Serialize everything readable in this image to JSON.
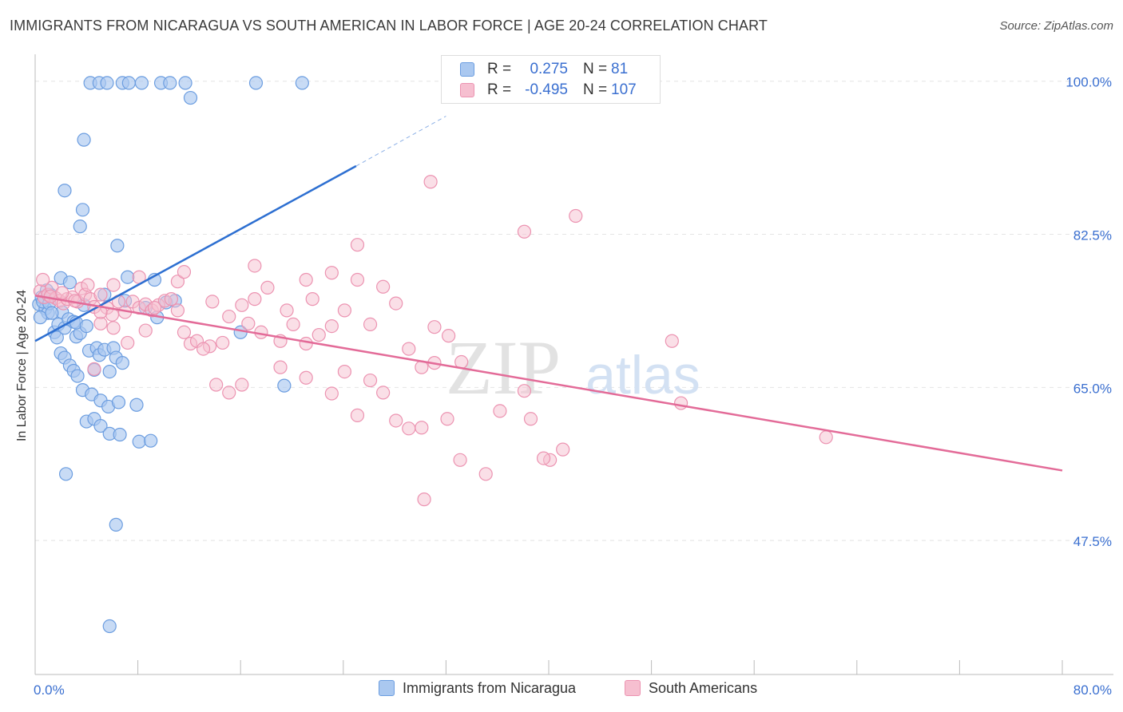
{
  "header": {
    "title": "IMMIGRANTS FROM NICARAGUA VS SOUTH AMERICAN IN LABOR FORCE | AGE 20-24 CORRELATION CHART",
    "source": "Source: ZipAtlas.com"
  },
  "watermark": {
    "zip": "ZIP",
    "atlas": "atlas"
  },
  "legend": {
    "rows": [
      {
        "r_label": "R =",
        "r_value": "0.275",
        "n_label": "N =",
        "n_value": "81"
      },
      {
        "r_label": "R =",
        "r_value": "-0.495",
        "n_label": "N =",
        "n_value": "107"
      }
    ]
  },
  "bottom_legend": {
    "series1": "Immigrants from Nicaragua",
    "series2": "South Americans"
  },
  "colors": {
    "blue_fill": "#aac8f0",
    "blue_stroke": "#6b9de0",
    "blue_line": "#2d6fd1",
    "pink_fill": "#f6bfd0",
    "pink_stroke": "#ec93b1",
    "pink_line": "#e36b98",
    "tick_label": "#3a6fd0",
    "grid": "#e4e4e4"
  },
  "chart_data": {
    "type": "scatter",
    "title": "IMMIGRANTS FROM NICARAGUA VS SOUTH AMERICAN IN LABOR FORCE | AGE 20-24 CORRELATION CHART",
    "xlabel": "",
    "ylabel": "In Labor Force | Age 20-24",
    "xlim": [
      0,
      80
    ],
    "ylim": [
      32,
      104
    ],
    "x_tick_labels": [
      "0.0%",
      "80.0%"
    ],
    "y_ticks": [
      47.5,
      65.0,
      82.5,
      100.0
    ],
    "y_tick_labels": [
      "47.5%",
      "65.0%",
      "82.5%",
      "100.0%"
    ],
    "grid": true,
    "legend_position": "top-center",
    "series": [
      {
        "name": "Immigrants from Nicaragua",
        "r": 0.275,
        "n": 81,
        "trend": {
          "x": [
            0,
            25,
            32
          ],
          "y": [
            70.3,
            90.3,
            96.0
          ],
          "solid_until_x": 25
        },
        "points": [
          [
            0.3,
            74.5
          ],
          [
            0.5,
            75.3
          ],
          [
            0.8,
            74.0
          ],
          [
            1.0,
            73.5
          ],
          [
            0.4,
            73.0
          ],
          [
            1.2,
            75.6
          ],
          [
            0.9,
            76.1
          ],
          [
            0.6,
            74.8
          ],
          [
            1.5,
            71.3
          ],
          [
            1.7,
            70.7
          ],
          [
            1.1,
            74.6
          ],
          [
            1.8,
            72.2
          ],
          [
            2.1,
            73.6
          ],
          [
            2.3,
            71.8
          ],
          [
            2.6,
            72.8
          ],
          [
            3.0,
            72.5
          ],
          [
            2.0,
            77.5
          ],
          [
            2.7,
            77.0
          ],
          [
            3.2,
            70.8
          ],
          [
            3.5,
            71.2
          ],
          [
            3.8,
            74.4
          ],
          [
            3.2,
            72.4
          ],
          [
            2.0,
            68.9
          ],
          [
            2.3,
            68.4
          ],
          [
            2.7,
            67.5
          ],
          [
            3.0,
            66.9
          ],
          [
            3.3,
            66.3
          ],
          [
            4.2,
            69.2
          ],
          [
            4.8,
            69.5
          ],
          [
            5.0,
            68.7
          ],
          [
            5.4,
            69.3
          ],
          [
            4.6,
            67.0
          ],
          [
            6.1,
            69.5
          ],
          [
            6.3,
            68.4
          ],
          [
            6.8,
            67.8
          ],
          [
            5.8,
            66.8
          ],
          [
            3.7,
            64.7
          ],
          [
            4.4,
            64.2
          ],
          [
            5.1,
            63.5
          ],
          [
            5.7,
            62.8
          ],
          [
            6.5,
            63.3
          ],
          [
            7.9,
            63.0
          ],
          [
            4.0,
            61.1
          ],
          [
            4.6,
            61.4
          ],
          [
            5.1,
            60.6
          ],
          [
            5.8,
            59.7
          ],
          [
            6.6,
            59.6
          ],
          [
            8.1,
            58.8
          ],
          [
            9.0,
            58.9
          ],
          [
            2.4,
            55.1
          ],
          [
            6.3,
            49.3
          ],
          [
            5.8,
            37.7
          ],
          [
            6.4,
            81.2
          ],
          [
            7.2,
            77.6
          ],
          [
            9.3,
            77.3
          ],
          [
            2.3,
            87.5
          ],
          [
            3.7,
            85.3
          ],
          [
            3.5,
            83.4
          ],
          [
            3.8,
            93.3
          ],
          [
            4.3,
            99.8
          ],
          [
            5.0,
            99.8
          ],
          [
            5.6,
            99.8
          ],
          [
            6.8,
            99.8
          ],
          [
            7.3,
            99.8
          ],
          [
            8.3,
            99.8
          ],
          [
            9.8,
            99.8
          ],
          [
            10.5,
            99.8
          ],
          [
            11.7,
            99.8
          ],
          [
            17.2,
            99.8
          ],
          [
            20.8,
            99.8
          ],
          [
            12.1,
            98.1
          ],
          [
            16.0,
            71.3
          ],
          [
            19.4,
            65.2
          ],
          [
            10.2,
            74.7
          ],
          [
            10.9,
            74.9
          ],
          [
            9.5,
            73.0
          ],
          [
            7.0,
            74.9
          ],
          [
            8.6,
            74.1
          ],
          [
            5.4,
            75.6
          ],
          [
            4.0,
            72.0
          ],
          [
            1.3,
            73.5
          ]
        ]
      },
      {
        "name": "South Americans",
        "r": -0.495,
        "n": 107,
        "trend": {
          "x": [
            0,
            80
          ],
          "y": [
            75.5,
            55.5
          ]
        },
        "points": [
          [
            0.4,
            76.0
          ],
          [
            0.7,
            75.3
          ],
          [
            1.0,
            75.6
          ],
          [
            1.3,
            76.4
          ],
          [
            0.6,
            77.3
          ],
          [
            1.6,
            75.2
          ],
          [
            1.9,
            74.9
          ],
          [
            2.2,
            74.6
          ],
          [
            2.5,
            75.1
          ],
          [
            2.9,
            75.3
          ],
          [
            3.3,
            74.8
          ],
          [
            3.6,
            76.3
          ],
          [
            3.9,
            75.6
          ],
          [
            4.3,
            75.1
          ],
          [
            4.6,
            74.2
          ],
          [
            5.1,
            75.6
          ],
          [
            5.6,
            74.1
          ],
          [
            6.0,
            73.3
          ],
          [
            6.5,
            74.8
          ],
          [
            7.0,
            73.6
          ],
          [
            7.6,
            74.8
          ],
          [
            8.1,
            74.1
          ],
          [
            8.6,
            74.5
          ],
          [
            9.1,
            73.8
          ],
          [
            9.6,
            74.4
          ],
          [
            10.1,
            74.9
          ],
          [
            10.6,
            75.1
          ],
          [
            11.1,
            73.8
          ],
          [
            5.1,
            72.3
          ],
          [
            6.1,
            71.8
          ],
          [
            7.2,
            70.1
          ],
          [
            8.6,
            71.5
          ],
          [
            11.6,
            71.3
          ],
          [
            12.1,
            70.0
          ],
          [
            12.6,
            70.3
          ],
          [
            13.6,
            69.7
          ],
          [
            13.1,
            69.4
          ],
          [
            14.6,
            70.1
          ],
          [
            15.1,
            73.1
          ],
          [
            16.1,
            74.4
          ],
          [
            16.6,
            72.3
          ],
          [
            17.1,
            75.1
          ],
          [
            17.6,
            71.3
          ],
          [
            18.1,
            76.4
          ],
          [
            19.1,
            70.3
          ],
          [
            19.6,
            73.8
          ],
          [
            20.1,
            72.2
          ],
          [
            21.1,
            70.0
          ],
          [
            21.6,
            75.1
          ],
          [
            22.1,
            71.0
          ],
          [
            23.1,
            72.0
          ],
          [
            24.1,
            73.8
          ],
          [
            25.1,
            77.3
          ],
          [
            26.1,
            72.2
          ],
          [
            27.1,
            76.5
          ],
          [
            28.1,
            74.6
          ],
          [
            29.1,
            69.4
          ],
          [
            30.1,
            67.3
          ],
          [
            31.1,
            71.9
          ],
          [
            32.2,
            70.9
          ],
          [
            33.2,
            67.9
          ],
          [
            36.2,
            62.3
          ],
          [
            11.1,
            77.1
          ],
          [
            11.6,
            78.2
          ],
          [
            17.1,
            78.9
          ],
          [
            21.1,
            77.3
          ],
          [
            23.1,
            78.1
          ],
          [
            8.1,
            77.6
          ],
          [
            6.1,
            76.7
          ],
          [
            5.1,
            73.6
          ],
          [
            4.6,
            67.1
          ],
          [
            14.1,
            65.3
          ],
          [
            15.1,
            64.4
          ],
          [
            16.1,
            65.3
          ],
          [
            19.1,
            67.3
          ],
          [
            21.1,
            66.1
          ],
          [
            23.1,
            64.3
          ],
          [
            24.1,
            66.8
          ],
          [
            25.1,
            61.8
          ],
          [
            26.1,
            65.8
          ],
          [
            27.1,
            64.4
          ],
          [
            28.1,
            61.2
          ],
          [
            29.1,
            60.3
          ],
          [
            30.1,
            60.4
          ],
          [
            31.1,
            67.8
          ],
          [
            32.1,
            61.4
          ],
          [
            33.1,
            56.7
          ],
          [
            35.1,
            55.1
          ],
          [
            38.1,
            64.6
          ],
          [
            38.6,
            61.4
          ],
          [
            40.1,
            56.7
          ],
          [
            41.1,
            57.9
          ],
          [
            39.6,
            56.9
          ],
          [
            30.3,
            52.2
          ],
          [
            30.8,
            88.5
          ],
          [
            38.1,
            82.8
          ],
          [
            42.1,
            84.6
          ],
          [
            25.1,
            81.3
          ],
          [
            49.6,
            70.3
          ],
          [
            50.3,
            63.2
          ],
          [
            61.6,
            59.3
          ],
          [
            1.2,
            75.4
          ],
          [
            2.1,
            75.8
          ],
          [
            3.1,
            74.9
          ],
          [
            4.1,
            76.7
          ],
          [
            9.3,
            74.1
          ],
          [
            13.8,
            74.8
          ]
        ]
      }
    ]
  }
}
